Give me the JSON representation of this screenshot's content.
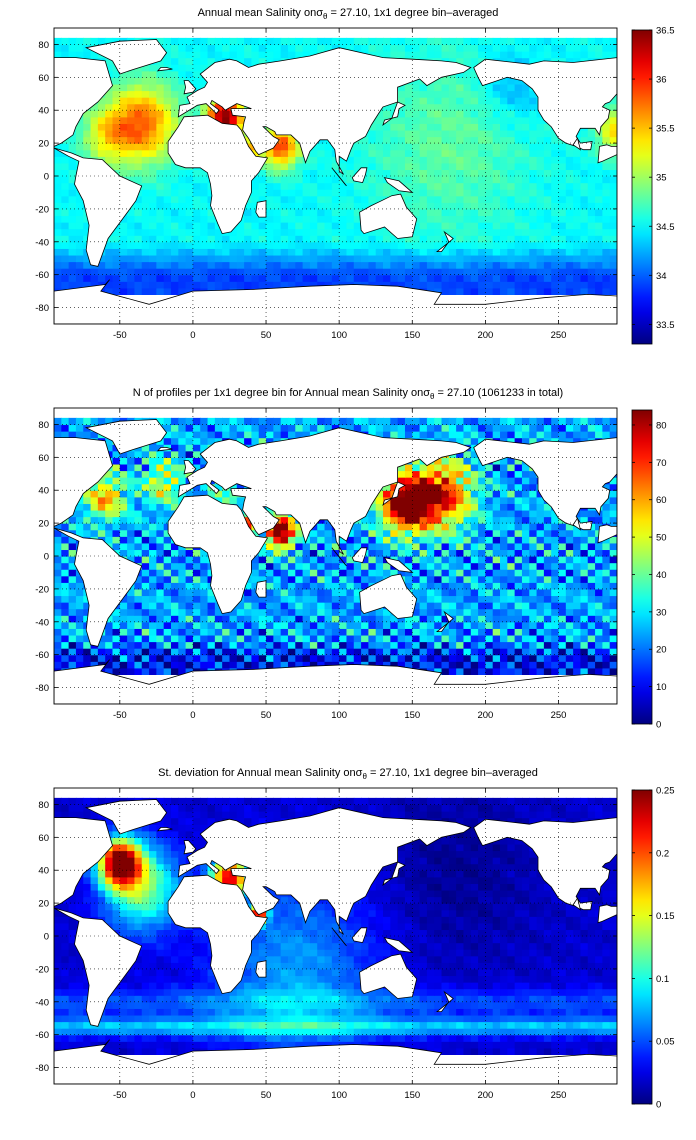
{
  "chart_data": [
    {
      "type": "heatmap",
      "title_before": "Annual mean Salinity on",
      "title_symbol": "σ",
      "title_subscript": "θ",
      "title_after": " = 27.10, 1x1 degree bin–averaged",
      "xlim": [
        -95,
        290
      ],
      "ylim": [
        -90,
        90
      ],
      "xticks": [
        -50,
        0,
        50,
        100,
        150,
        200,
        250
      ],
      "yticks": [
        80,
        60,
        40,
        20,
        0,
        -20,
        -40,
        -60,
        -80
      ],
      "grid": true,
      "colorbar": {
        "min": 33.3,
        "max": 36.5,
        "ticks": [
          36.5,
          36,
          35.5,
          35,
          34.5,
          34,
          33.5
        ],
        "colormap": "jet"
      },
      "field_description": {
        "background_value": 34.5,
        "high_regions": [
          "North Atlantic subtropics ~35.6-36",
          "Mediterranean ~36.5",
          "Red Sea/Persian Gulf ~36",
          "Arabian Sea ~35.5"
        ],
        "low_regions": [
          "Southern Ocean ~33.8-34.2"
        ]
      }
    },
    {
      "type": "heatmap",
      "title_before": "N of profiles per 1x1 degree bin for Annual mean Salinity on",
      "title_symbol": "σ",
      "title_subscript": "θ",
      "title_after": " = 27.10 (1061233 in total)",
      "xlim": [
        -95,
        290
      ],
      "ylim": [
        -90,
        90
      ],
      "xticks": [
        -50,
        0,
        50,
        100,
        150,
        200,
        250
      ],
      "yticks": [
        80,
        60,
        40,
        20,
        0,
        -20,
        -40,
        -60,
        -80
      ],
      "grid": true,
      "colorbar": {
        "min": 0,
        "max": 84,
        "ticks": [
          80,
          70,
          60,
          50,
          40,
          30,
          20,
          10,
          0
        ],
        "colormap": "jet"
      },
      "field_description": {
        "background_value": 25,
        "high_regions": [
          "Kuroshio / NW Pacific >80",
          "Red Sea and Arabian Sea >80",
          "Gulf Stream ~60"
        ],
        "low_regions": [
          "Southern Ocean ~10"
        ]
      }
    },
    {
      "type": "heatmap",
      "title_before": "St. deviation for Annual mean Salinity on",
      "title_symbol": "σ",
      "title_subscript": "θ",
      "title_after": " = 27.10, 1x1 degree bin–averaged",
      "xlim": [
        -95,
        290
      ],
      "ylim": [
        -90,
        90
      ],
      "xticks": [
        -50,
        0,
        50,
        100,
        150,
        200,
        250
      ],
      "yticks": [
        80,
        60,
        40,
        20,
        0,
        -20,
        -40,
        -60,
        -80
      ],
      "grid": true,
      "colorbar": {
        "min": 0,
        "max": 0.25,
        "ticks": [
          0.25,
          0.2,
          0.15,
          0.1,
          0.05,
          0
        ],
        "colormap": "jet"
      },
      "field_description": {
        "background_value": 0.02,
        "high_regions": [
          "Labrador / Gulf Stream ~0.25",
          "Mediterranean ~0.2",
          "Red Sea outflow ~0.2"
        ],
        "moderate_regions": [
          "Southern Ocean frontal band ~0.08"
        ]
      }
    }
  ]
}
